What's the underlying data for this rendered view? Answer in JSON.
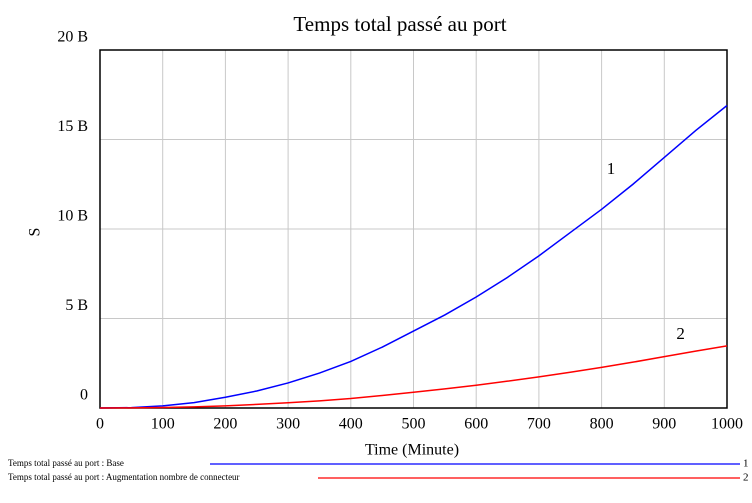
{
  "chart_data": {
    "type": "line",
    "title": "Temps total passé au port",
    "xlabel": "Time (Minute)",
    "ylabel": "S",
    "x": [
      0,
      50,
      100,
      150,
      200,
      250,
      300,
      350,
      400,
      450,
      500,
      550,
      600,
      650,
      700,
      750,
      800,
      850,
      900,
      950,
      1000
    ],
    "series": [
      {
        "name": "Temps total passé au port : Base",
        "label": "1",
        "color": "#0000ff",
        "values": [
          0,
          20000000,
          120000000,
          300000000,
          600000000,
          950000000,
          1400000000,
          1950000000,
          2600000000,
          3400000000,
          4300000000,
          5200000000,
          6200000000,
          7300000000,
          8500000000,
          9800000000,
          11100000000,
          12500000000,
          14000000000,
          15500000000,
          16900000000
        ]
      },
      {
        "name": "Temps total passé au port : Augmentation nombre de connecteur",
        "label": "2",
        "color": "#ff0000",
        "values": [
          0,
          4000000,
          25000000,
          60000000,
          120000000,
          200000000,
          290000000,
          400000000,
          530000000,
          700000000,
          880000000,
          1070000000,
          1270000000,
          1500000000,
          1740000000,
          2000000000,
          2270000000,
          2560000000,
          2870000000,
          3180000000,
          3470000000
        ]
      }
    ],
    "xlim": [
      0,
      1000
    ],
    "xticks": [
      0,
      100,
      200,
      300,
      400,
      500,
      600,
      700,
      800,
      900,
      1000
    ],
    "ylim": [
      0,
      20000000000
    ],
    "yticks": [
      {
        "value": 0,
        "label": "0"
      },
      {
        "value": 5000000000,
        "label": "5 B"
      },
      {
        "value": 10000000000,
        "label": "10 B"
      },
      {
        "value": 15000000000,
        "label": "15 B"
      },
      {
        "value": 20000000000,
        "label": "20 B"
      }
    ],
    "grid": true
  }
}
